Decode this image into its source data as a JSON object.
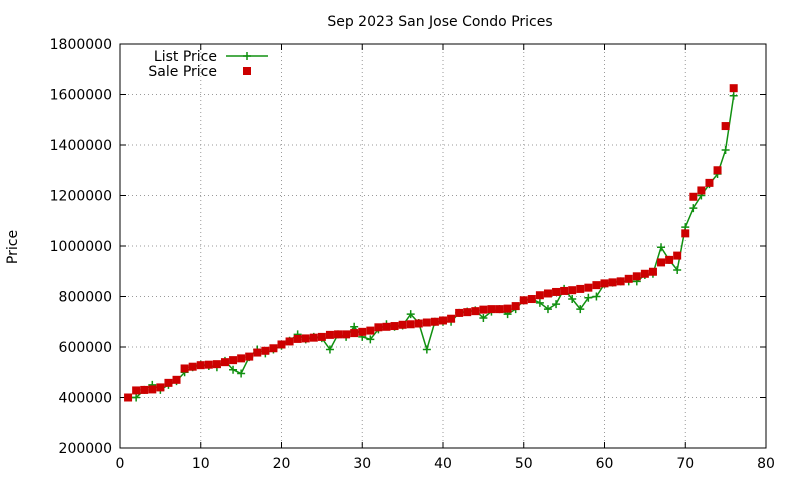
{
  "chart_data": {
    "type": "line",
    "title": "Sep 2023 San Jose Condo Prices",
    "xlabel": "",
    "ylabel": "Price",
    "xlim": [
      0,
      80
    ],
    "ylim": [
      200000,
      1800000
    ],
    "x_ticks": [
      0,
      10,
      20,
      30,
      40,
      50,
      60,
      70,
      80
    ],
    "y_ticks": [
      200000,
      400000,
      600000,
      800000,
      1000000,
      1200000,
      1400000,
      1600000,
      1800000
    ],
    "grid": true,
    "legend_position": "top-left",
    "series": [
      {
        "name": "List Price",
        "marker": "plus",
        "color": "#109010",
        "x": [
          1,
          2,
          3,
          4,
          5,
          6,
          7,
          8,
          9,
          10,
          11,
          12,
          13,
          14,
          15,
          16,
          17,
          18,
          19,
          20,
          21,
          22,
          23,
          24,
          25,
          26,
          27,
          28,
          29,
          30,
          31,
          32,
          33,
          34,
          35,
          36,
          37,
          38,
          39,
          40,
          41,
          42,
          43,
          44,
          45,
          46,
          47,
          48,
          49,
          50,
          51,
          52,
          53,
          54,
          55,
          56,
          57,
          58,
          59,
          60,
          61,
          62,
          63,
          64,
          65,
          66,
          67,
          68,
          69,
          70,
          71,
          72,
          73,
          74,
          75,
          76
        ],
        "values": [
          400000,
          400000,
          430000,
          450000,
          430000,
          450000,
          465000,
          500000,
          520000,
          530000,
          525000,
          520000,
          545000,
          510000,
          495000,
          560000,
          590000,
          575000,
          590000,
          605000,
          625000,
          650000,
          630000,
          640000,
          635000,
          590000,
          650000,
          640000,
          680000,
          640000,
          630000,
          670000,
          690000,
          680000,
          685000,
          730000,
          695000,
          590000,
          700000,
          700000,
          700000,
          735000,
          740000,
          745000,
          715000,
          740000,
          750000,
          730000,
          750000,
          785000,
          790000,
          775000,
          750000,
          770000,
          830000,
          790000,
          750000,
          795000,
          800000,
          850000,
          855000,
          860000,
          860000,
          860000,
          885000,
          890000,
          995000,
          945000,
          905000,
          1075000,
          1150000,
          1200000,
          1245000,
          1285000,
          1380000,
          1595000
        ]
      },
      {
        "name": "Sale Price",
        "marker": "square",
        "color": "#cc0000",
        "x": [
          1,
          2,
          3,
          4,
          5,
          6,
          7,
          8,
          9,
          10,
          11,
          12,
          13,
          14,
          15,
          16,
          17,
          18,
          19,
          20,
          21,
          22,
          23,
          24,
          25,
          26,
          27,
          28,
          29,
          30,
          31,
          32,
          33,
          34,
          35,
          36,
          37,
          38,
          39,
          40,
          41,
          42,
          43,
          44,
          45,
          46,
          47,
          48,
          49,
          50,
          51,
          52,
          53,
          54,
          55,
          56,
          57,
          58,
          59,
          60,
          61,
          62,
          63,
          64,
          65,
          66,
          67,
          68,
          69,
          70,
          71,
          72,
          73,
          74,
          75,
          76
        ],
        "values": [
          400000,
          428000,
          430000,
          432000,
          440000,
          458000,
          470000,
          515000,
          522000,
          528000,
          530000,
          532000,
          540000,
          548000,
          555000,
          562000,
          578000,
          585000,
          595000,
          610000,
          622000,
          632000,
          634000,
          637000,
          640000,
          648000,
          650000,
          650000,
          655000,
          660000,
          665000,
          678000,
          680000,
          683000,
          688000,
          690000,
          693000,
          697000,
          700000,
          705000,
          712000,
          735000,
          738000,
          742000,
          748000,
          750000,
          750000,
          752000,
          762000,
          785000,
          790000,
          805000,
          812000,
          818000,
          822000,
          825000,
          830000,
          835000,
          845000,
          852000,
          856000,
          860000,
          870000,
          880000,
          890000,
          898000,
          935000,
          945000,
          962000,
          1050000,
          1195000,
          1220000,
          1250000,
          1300000,
          1475000,
          1625000
        ]
      }
    ]
  }
}
